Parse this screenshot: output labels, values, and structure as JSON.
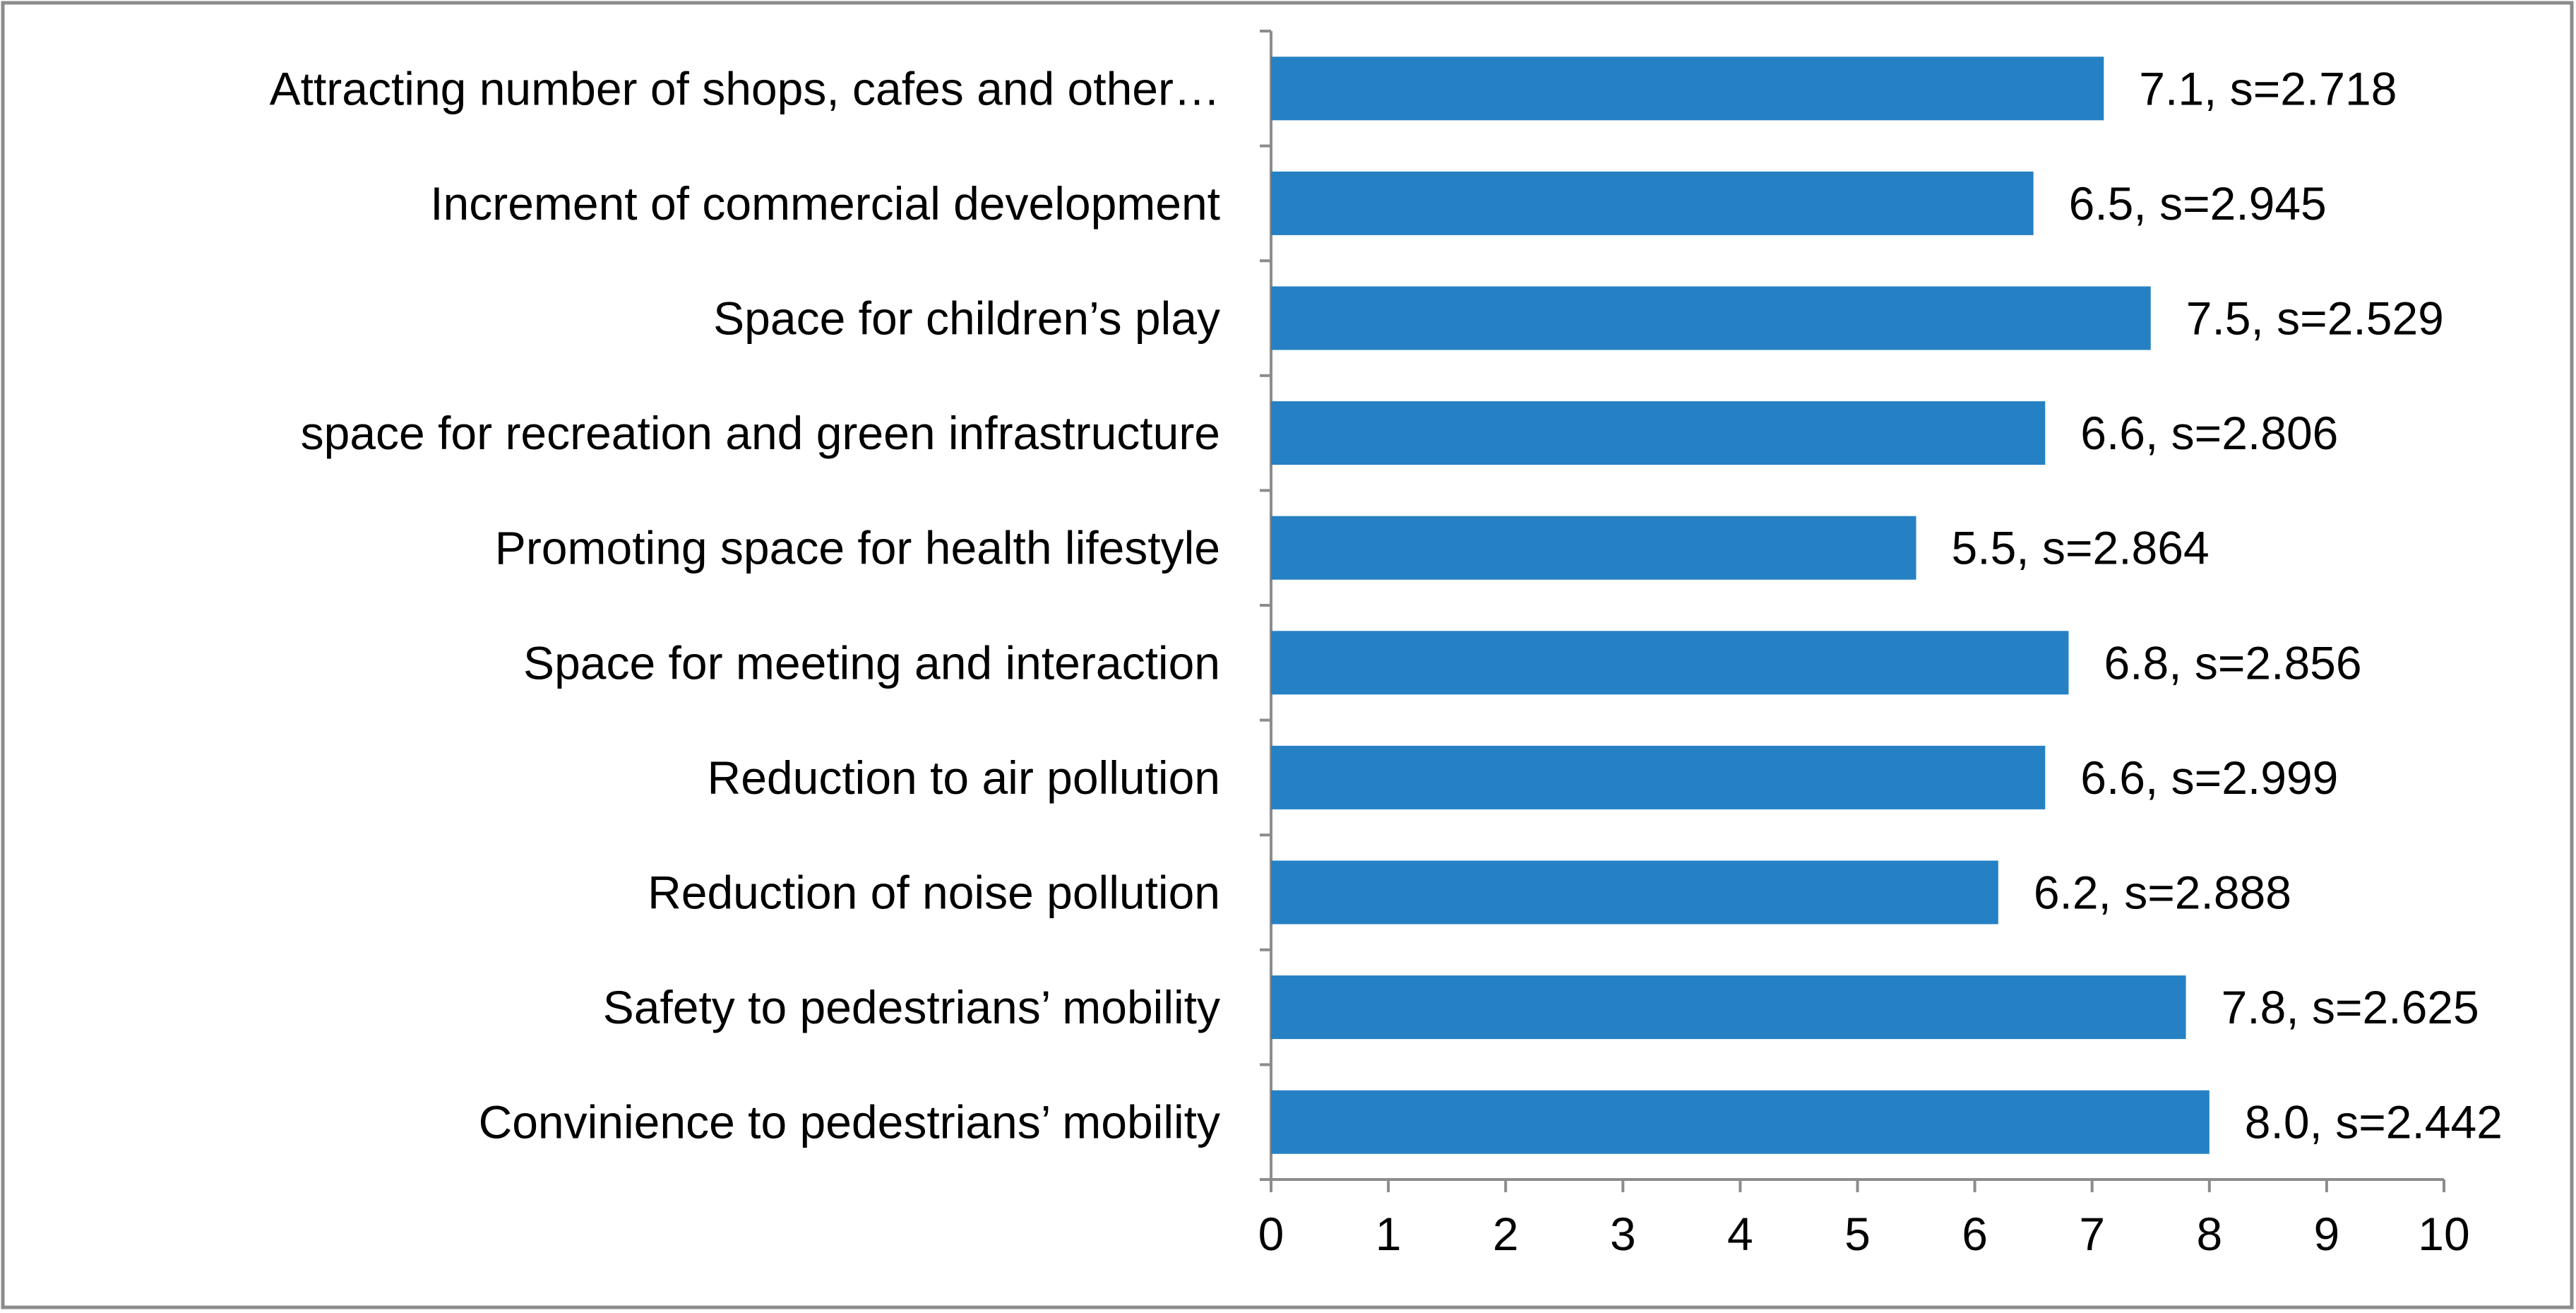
{
  "chart_data": {
    "type": "bar",
    "orientation": "horizontal",
    "title": "",
    "xlabel": "",
    "ylabel": "",
    "xlim": [
      0,
      10
    ],
    "x_ticks": [
      "0",
      "1",
      "2",
      "3",
      "4",
      "5",
      "6",
      "7",
      "8",
      "9",
      "10"
    ],
    "grid": false,
    "bar_color": "#2581C4",
    "categories": [
      "Attracting number of shops, cafes and other…",
      "Increment of  commercial development",
      "Space for children’s play",
      "space for recreation  and green infrastructure",
      "Promoting space for health lifestyle",
      "Space for meeting and interaction",
      "Reduction to air pollution",
      "Reduction of noise pollution",
      "Safety to pedestrians’ mobility",
      "Convinience to pedestrians’ mobility"
    ],
    "values": [
      7.1,
      6.5,
      7.5,
      6.6,
      5.5,
      6.8,
      6.6,
      6.2,
      7.8,
      8.0
    ],
    "data_labels": [
      "7.1, s=2.718",
      "6.5, s=2.945",
      "7.5, s=2.529",
      "6.6, s=2.806",
      "5.5, s=2.864",
      "6.8, s=2.856",
      "6.6, s=2.999",
      "6.2, s=2.888",
      "7.8, s=2.625",
      "8.0, s=2.442"
    ]
  }
}
